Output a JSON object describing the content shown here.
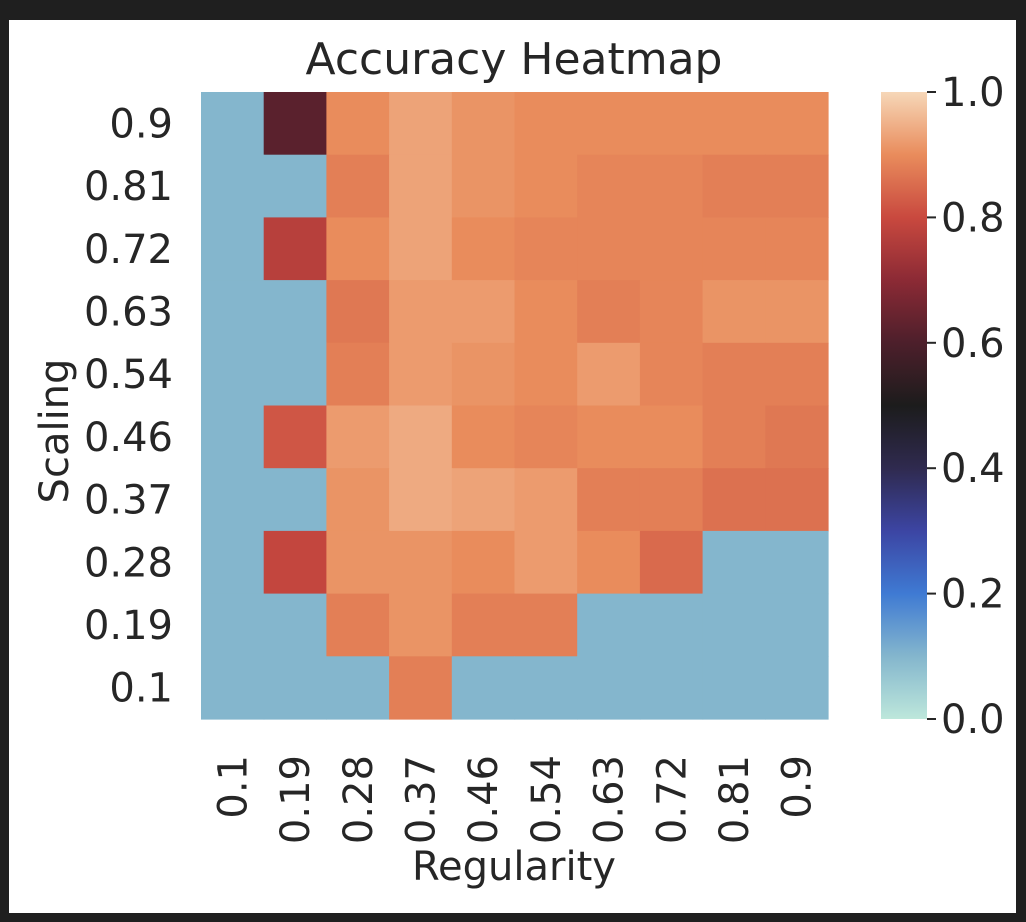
{
  "chart_data": {
    "type": "heatmap",
    "title": "Accuracy Heatmap",
    "xlabel": "Regularity",
    "ylabel": "Scaling",
    "x_categories": [
      "0.1",
      "0.19",
      "0.28",
      "0.37",
      "0.46",
      "0.54",
      "0.63",
      "0.72",
      "0.81",
      "0.9"
    ],
    "y_categories": [
      "0.9",
      "0.81",
      "0.72",
      "0.63",
      "0.54",
      "0.46",
      "0.37",
      "0.28",
      "0.19",
      "0.1"
    ],
    "values": [
      [
        0.1,
        0.62,
        0.9,
        0.93,
        0.91,
        0.9,
        0.9,
        0.9,
        0.9,
        0.9
      ],
      [
        0.1,
        0.1,
        0.88,
        0.93,
        0.91,
        0.9,
        0.89,
        0.89,
        0.88,
        0.88
      ],
      [
        0.1,
        0.77,
        0.9,
        0.93,
        0.9,
        0.89,
        0.89,
        0.89,
        0.89,
        0.89
      ],
      [
        0.1,
        0.1,
        0.87,
        0.92,
        0.92,
        0.9,
        0.88,
        0.89,
        0.91,
        0.91
      ],
      [
        0.1,
        0.1,
        0.88,
        0.92,
        0.91,
        0.9,
        0.92,
        0.89,
        0.88,
        0.88
      ],
      [
        0.1,
        0.82,
        0.92,
        0.94,
        0.9,
        0.89,
        0.9,
        0.9,
        0.88,
        0.87
      ],
      [
        0.1,
        0.1,
        0.91,
        0.94,
        0.93,
        0.92,
        0.88,
        0.88,
        0.86,
        0.86
      ],
      [
        0.1,
        0.79,
        0.91,
        0.91,
        0.9,
        0.92,
        0.9,
        0.85,
        0.1,
        0.1
      ],
      [
        0.1,
        0.1,
        0.88,
        0.91,
        0.88,
        0.88,
        0.1,
        0.1,
        0.1,
        0.1
      ],
      [
        0.1,
        0.1,
        0.1,
        0.88,
        0.1,
        0.1,
        0.1,
        0.1,
        0.1,
        0.1
      ]
    ],
    "vmin": 0.0,
    "vmax": 1.0,
    "colorbar": {
      "ticks": [
        "0.0",
        "0.2",
        "0.4",
        "0.6",
        "0.8",
        "1.0"
      ],
      "tick_values": [
        0.0,
        0.2,
        0.4,
        0.6,
        0.8,
        1.0
      ],
      "colormap": "icefire",
      "stops": [
        {
          "v": 0.0,
          "color": "#bde7db"
        },
        {
          "v": 0.1,
          "color": "#84b6cd"
        },
        {
          "v": 0.2,
          "color": "#3f7ad3"
        },
        {
          "v": 0.3,
          "color": "#3c45a3"
        },
        {
          "v": 0.4,
          "color": "#2f2a4f"
        },
        {
          "v": 0.5,
          "color": "#1c1c1c"
        },
        {
          "v": 0.6,
          "color": "#4d1f2b"
        },
        {
          "v": 0.7,
          "color": "#8c2a35"
        },
        {
          "v": 0.8,
          "color": "#c9493f"
        },
        {
          "v": 0.9,
          "color": "#e98c5c"
        },
        {
          "v": 1.0,
          "color": "#f6d7b8"
        }
      ]
    }
  }
}
